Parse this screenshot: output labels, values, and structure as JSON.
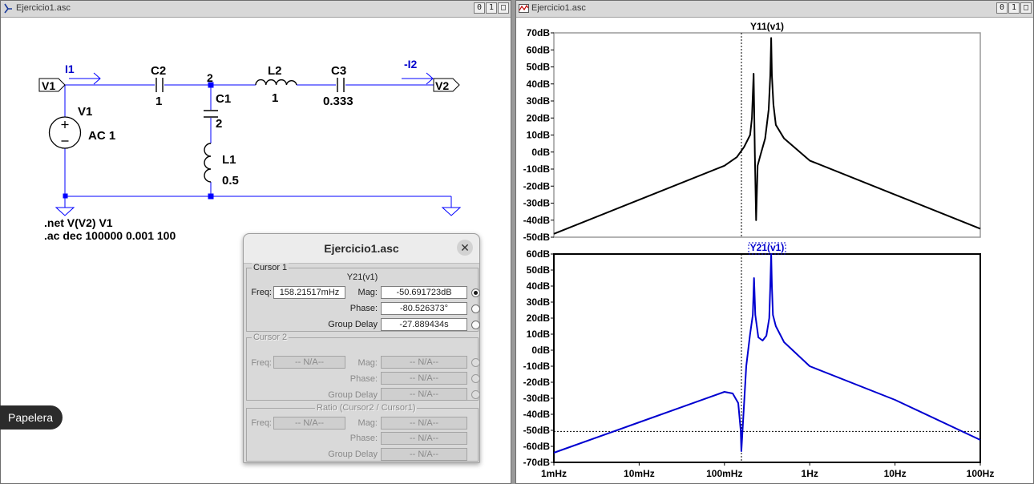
{
  "schematic_window": {
    "title": "Ejercicio1.asc",
    "buttons": [
      "0",
      "1",
      "□"
    ]
  },
  "schematic": {
    "ports": {
      "v1": "V1",
      "v2": "V2"
    },
    "currents": {
      "i1": "I1",
      "i2": "-I2"
    },
    "node_label": "2",
    "components": {
      "c2_name": "C2",
      "c2_value": "1",
      "c1_name": "C1",
      "c1_value": "2",
      "l2_name": "L2",
      "l2_value": "1",
      "c3_name": "C3",
      "c3_value": "0.333",
      "l1_name": "L1",
      "l1_value": "0.5",
      "v1_name": "V1",
      "v1_value": "AC 1"
    },
    "directives": [
      ".net V(V2) V1",
      ".ac dec 100000 0.001 100"
    ]
  },
  "plot_window": {
    "title": "Ejercicio1.asc",
    "buttons": [
      "0",
      "1",
      "□"
    ]
  },
  "taskbar_badge": {
    "label": "Papelera"
  },
  "cursor_dialog": {
    "title": "Ejercicio1.asc",
    "close_glyph": "✕",
    "cursor1": {
      "label": "Cursor 1",
      "trace": "Y21(v1)",
      "freq_label": "Freq:",
      "freq": "158.21517mHz",
      "mag_label": "Mag:",
      "mag": "-50.691723dB",
      "phase_label": "Phase:",
      "phase": "-80.526373°",
      "gd_label": "Group Delay",
      "group_delay": "-27.889434s"
    },
    "cursor2": {
      "label": "Cursor 2",
      "freq_label": "Freq:",
      "freq": "-- N/A--",
      "mag_label": "Mag:",
      "mag": "-- N/A--",
      "phase_label": "Phase:",
      "phase": "-- N/A--",
      "gd_label": "Group Delay",
      "group_delay": "-- N/A--"
    },
    "ratio": {
      "label": "Ratio (Cursor2 / Cursor1)",
      "freq_label": "Freq:",
      "freq": "-- N/A--",
      "mag_label": "Mag:",
      "mag": "-- N/A--",
      "phase_label": "Phase:",
      "phase": "-- N/A--",
      "gd_label": "Group Delay",
      "group_delay": "-- N/A--"
    }
  },
  "chart_data": [
    {
      "type": "line",
      "title": "Y11(v1)",
      "x_scale": "log",
      "x_range_hz": [
        0.001,
        100
      ],
      "ylim": [
        -50,
        70
      ],
      "y_ticks": [
        "70dB",
        "60dB",
        "50dB",
        "40dB",
        "30dB",
        "20dB",
        "10dB",
        "0dB",
        "-10dB",
        "-20dB",
        "-30dB",
        "-40dB",
        "-50dB"
      ],
      "color": "#000000",
      "cursor_x_hz": 0.15821517,
      "series": [
        {
          "x": [
            0.001,
            0.01,
            0.1,
            0.14,
            0.17,
            0.2,
            0.21,
            0.22,
            0.227,
            0.235,
            0.245,
            0.26,
            0.3,
            0.33,
            0.345,
            0.353,
            0.36,
            0.375,
            0.4,
            0.5,
            1,
            10,
            100
          ],
          "y": [
            -48,
            -28,
            -8,
            -3,
            3,
            10,
            20,
            46,
            0,
            -40,
            -8,
            -3,
            8,
            25,
            45,
            67,
            45,
            28,
            16,
            8,
            -5,
            -25,
            -45
          ]
        }
      ]
    },
    {
      "type": "line",
      "title": "Y21(v1)",
      "x_scale": "log",
      "x_range_hz": [
        0.001,
        100
      ],
      "x_ticks": [
        "1mHz",
        "10mHz",
        "100mHz",
        "1Hz",
        "10Hz",
        "100Hz"
      ],
      "ylim": [
        -70,
        60
      ],
      "y_ticks": [
        "60dB",
        "50dB",
        "40dB",
        "30dB",
        "20dB",
        "10dB",
        "0dB",
        "-10dB",
        "-20dB",
        "-30dB",
        "-40dB",
        "-50dB",
        "-60dB",
        "-70dB"
      ],
      "color": "#0000d0",
      "cursor_x_hz": 0.15821517,
      "cursor_y_db": -50.691723,
      "series": [
        {
          "x": [
            0.001,
            0.01,
            0.1,
            0.125,
            0.145,
            0.155,
            0.158,
            0.163,
            0.18,
            0.2,
            0.215,
            0.222,
            0.23,
            0.25,
            0.28,
            0.31,
            0.335,
            0.345,
            0.353,
            0.36,
            0.37,
            0.4,
            0.5,
            1,
            10,
            100
          ],
          "y": [
            -64,
            -45,
            -26,
            -27,
            -33,
            -50,
            -63,
            -50,
            -10,
            10,
            22,
            45,
            22,
            8,
            6,
            9,
            20,
            40,
            60,
            40,
            22,
            15,
            5,
            -10,
            -31,
            -56
          ]
        }
      ]
    }
  ]
}
